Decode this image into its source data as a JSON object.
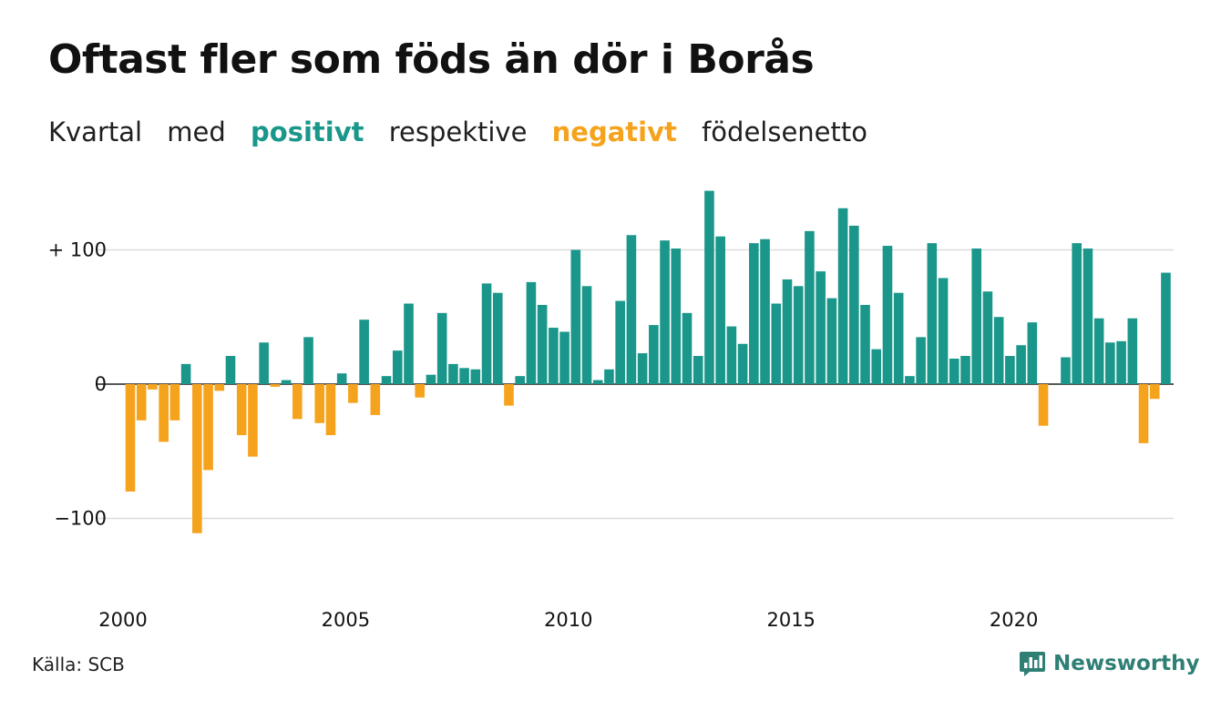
{
  "title": "Oftast fler som föds än dör i Borås",
  "subtitle": {
    "word1": "Kvartal",
    "word2": "med",
    "positive": "positivt",
    "word3": "respektive",
    "negative": "negativt",
    "word4": "födelsenetto"
  },
  "source": "Källa: SCB",
  "brand": {
    "name": "Newsworthy",
    "icon": "newsworthy-chart-bubble-icon"
  },
  "colors": {
    "positive": "#1a978a",
    "negative": "#f5a31d",
    "grid": "#dddddd",
    "zero": "#222222"
  },
  "chart_data": {
    "type": "bar",
    "title": "Oftast fler som föds än dör i Borås",
    "subtitle": "Kvartal med positivt respektive negativt födelsenetto",
    "xlabel": "",
    "ylabel": "",
    "x_start": "2000 Q1",
    "frequency": "quarterly",
    "ylim": [
      -150,
      150
    ],
    "y_ticks": [
      {
        "value": 100,
        "label": "+ 100"
      },
      {
        "value": 0,
        "label": "0"
      },
      {
        "value": -100,
        "label": "−100"
      }
    ],
    "x_ticks": [
      "2000",
      "2005",
      "2010",
      "2015",
      "2020"
    ],
    "grid": true,
    "values": [
      -80,
      -27,
      -4,
      -43,
      -27,
      15,
      -111,
      -64,
      -5,
      21,
      -38,
      -54,
      31,
      -2,
      3,
      -26,
      35,
      -29,
      -38,
      8,
      -14,
      48,
      -23,
      6,
      25,
      60,
      -10,
      7,
      53,
      15,
      12,
      11,
      75,
      68,
      -16,
      6,
      76,
      59,
      42,
      39,
      100,
      73,
      3,
      11,
      62,
      111,
      23,
      44,
      107,
      101,
      53,
      21,
      144,
      110,
      43,
      30,
      105,
      108,
      60,
      78,
      73,
      114,
      84,
      64,
      131,
      118,
      59,
      26,
      103,
      68,
      6,
      35,
      105,
      79,
      19,
      21,
      101,
      69,
      50,
      21,
      29,
      46,
      -31,
      0,
      20,
      105,
      101,
      49,
      31,
      32,
      49,
      -44,
      -11,
      83
    ]
  }
}
